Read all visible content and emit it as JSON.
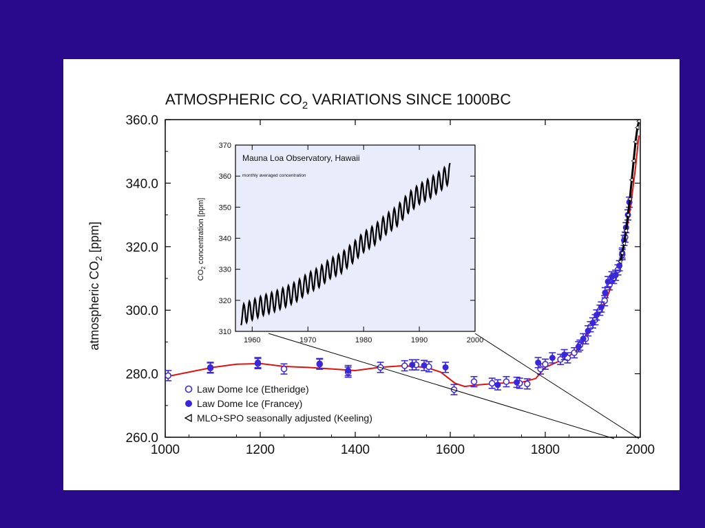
{
  "colors": {
    "background": "#2a0a8c",
    "panel": "#ffffff",
    "inset_background": "#e8ecfb",
    "data_marker": "#3a28d8",
    "fit_line": "#e01010",
    "keeling_line": "#000000"
  },
  "chart_data": [
    {
      "type": "scatter",
      "title_pre": "ATMOSPHERIC CO",
      "title_sub": "2",
      "title_post": " VARIATIONS SINCE 1000BC",
      "ylabel_pre": "atmospheric CO",
      "ylabel_sub": "2",
      "ylabel_post": " [ppm]",
      "xlabel": "",
      "xlim": [
        1000,
        2000
      ],
      "ylim": [
        260,
        360
      ],
      "x_ticks": [
        1000,
        1200,
        1400,
        1600,
        1800,
        2000
      ],
      "x_tick_labels": [
        "1000",
        "1200",
        "1400",
        "1600",
        "1800",
        "2000"
      ],
      "y_ticks": [
        260,
        280,
        300,
        320,
        340,
        360
      ],
      "y_tick_labels": [
        "260.0",
        "280.0",
        "300.0",
        "320.0",
        "340.0",
        "360.0"
      ],
      "grid": false,
      "legend": {
        "placement": "bottom-left",
        "entries": [
          {
            "marker": "open-circle",
            "label": "Law Dome Ice (Etheridge)"
          },
          {
            "marker": "filled-circle",
            "label": "Law Dome Ice (Francey)"
          },
          {
            "marker": "triangle-left",
            "label": "MLO+SPO seasonally adjusted (Keeling)"
          }
        ]
      },
      "series": [
        {
          "key": "etheridge",
          "marker": "open-circle",
          "points": [
            [
              1006,
              279.4
            ],
            [
              1095,
              281.8
            ],
            [
              1195,
              283.2
            ],
            [
              1250,
              281.5
            ],
            [
              1325,
              283.0
            ],
            [
              1385,
              280.5
            ],
            [
              1453,
              282.0
            ],
            [
              1504,
              282.5
            ],
            [
              1528,
              282.8
            ],
            [
              1555,
              282.2
            ],
            [
              1608,
              275.0
            ],
            [
              1650,
              277.5
            ],
            [
              1688,
              277.0
            ],
            [
              1718,
              277.5
            ],
            [
              1746,
              277.0
            ],
            [
              1762,
              276.8
            ],
            [
              1790,
              281.5
            ],
            [
              1800,
              283.0
            ],
            [
              1832,
              284.5
            ],
            [
              1847,
              285.0
            ],
            [
              1861,
              286.6
            ],
            [
              1873,
              289.0
            ],
            [
              1885,
              291.0
            ],
            [
              1895,
              294.8
            ],
            [
              1905,
              297.0
            ],
            [
              1915,
              300.0
            ],
            [
              1925,
              303.0
            ],
            [
              1935,
              308.0
            ],
            [
              1944,
              310.0
            ],
            [
              1953,
              312.7
            ],
            [
              1962,
              317.5
            ],
            [
              1968,
              323.0
            ]
          ]
        },
        {
          "key": "francey",
          "marker": "filled-circle",
          "points": [
            [
              1095,
              282.0
            ],
            [
              1195,
              283.5
            ],
            [
              1325,
              283.2
            ],
            [
              1385,
              281.0
            ],
            [
              1520,
              282.8
            ],
            [
              1545,
              282.6
            ],
            [
              1590,
              282.0
            ],
            [
              1700,
              276.5
            ],
            [
              1740,
              277.3
            ],
            [
              1785,
              283.5
            ],
            [
              1815,
              285.0
            ],
            [
              1840,
              286.0
            ],
            [
              1870,
              288.5
            ],
            [
              1880,
              291.0
            ],
            [
              1890,
              293.5
            ],
            [
              1900,
              296.0
            ],
            [
              1908,
              298.5
            ],
            [
              1918,
              301.0
            ],
            [
              1926,
              305.5
            ],
            [
              1932,
              309.0
            ],
            [
              1940,
              310.5
            ],
            [
              1948,
              311.0
            ],
            [
              1956,
              314.0
            ],
            [
              1962,
              318.0
            ],
            [
              1966,
              322.0
            ],
            [
              1970,
              326.0
            ],
            [
              1974,
              330.0
            ],
            [
              1977,
              334.0
            ]
          ]
        },
        {
          "key": "keeling",
          "marker": "triangle-left",
          "points": [
            [
              1958,
              315.3
            ],
            [
              1962,
              318.0
            ],
            [
              1966,
              321.0
            ],
            [
              1970,
              325.0
            ],
            [
              1974,
              330.0
            ],
            [
              1978,
              335.0
            ],
            [
              1982,
              341.0
            ],
            [
              1986,
              347.0
            ],
            [
              1990,
              353.0
            ],
            [
              1994,
              357.5
            ],
            [
              1997,
              359.5
            ]
          ]
        }
      ],
      "fit_line": [
        [
          1000,
          279.0
        ],
        [
          1050,
          280.5
        ],
        [
          1100,
          282.0
        ],
        [
          1150,
          283.0
        ],
        [
          1200,
          283.2
        ],
        [
          1250,
          282.3
        ],
        [
          1300,
          282.0
        ],
        [
          1350,
          281.5
        ],
        [
          1400,
          281.0
        ],
        [
          1450,
          282.0
        ],
        [
          1500,
          282.5
        ],
        [
          1550,
          282.0
        ],
        [
          1580,
          280.5
        ],
        [
          1610,
          277.0
        ],
        [
          1630,
          276.0
        ],
        [
          1660,
          276.5
        ],
        [
          1700,
          277.0
        ],
        [
          1750,
          277.3
        ],
        [
          1780,
          278.5
        ],
        [
          1800,
          282.0
        ],
        [
          1830,
          284.0
        ],
        [
          1850,
          285.5
        ],
        [
          1870,
          288.0
        ],
        [
          1890,
          293.0
        ],
        [
          1910,
          298.0
        ],
        [
          1930,
          304.0
        ],
        [
          1940,
          308.0
        ],
        [
          1950,
          311.5
        ],
        [
          1960,
          316.0
        ],
        [
          1970,
          324.0
        ],
        [
          1980,
          333.0
        ],
        [
          1990,
          345.0
        ],
        [
          1997,
          355.0
        ]
      ]
    },
    {
      "type": "line",
      "title": "Mauna Loa Observatory, Hawaii",
      "subtitle": "monthly averaged concentration",
      "ylabel_pre": "CO",
      "ylabel_sub": "2",
      "ylabel_post": " concentration [ppm]",
      "xlabel": "",
      "xlim": [
        1957,
        2000
      ],
      "ylim": [
        310,
        370
      ],
      "x_ticks": [
        1960,
        1970,
        1980,
        1990,
        2000
      ],
      "x_tick_labels": [
        "1960",
        "1970",
        "1980",
        "1990",
        "2000"
      ],
      "y_ticks": [
        310,
        320,
        330,
        340,
        350,
        360,
        370
      ],
      "y_tick_labels": [
        "310",
        "320",
        "330",
        "340",
        "350",
        "360",
        "370"
      ],
      "grid": false,
      "series": [
        {
          "key": "mlo_monthly",
          "annual_trend": [
            [
              1958,
              315.2
            ],
            [
              1960,
              316.9
            ],
            [
              1962,
              318.4
            ],
            [
              1964,
              319.6
            ],
            [
              1966,
              321.1
            ],
            [
              1968,
              322.9
            ],
            [
              1970,
              325.5
            ],
            [
              1972,
              327.4
            ],
            [
              1974,
              330.2
            ],
            [
              1976,
              332.0
            ],
            [
              1978,
              335.2
            ],
            [
              1980,
              338.7
            ],
            [
              1982,
              341.1
            ],
            [
              1984,
              344.4
            ],
            [
              1986,
              347.1
            ],
            [
              1988,
              351.3
            ],
            [
              1990,
              354.2
            ],
            [
              1992,
              356.2
            ],
            [
              1994,
              358.8
            ],
            [
              1995.5,
              361.0
            ]
          ],
          "seasonal_amplitude": 3.2
        }
      ]
    }
  ]
}
